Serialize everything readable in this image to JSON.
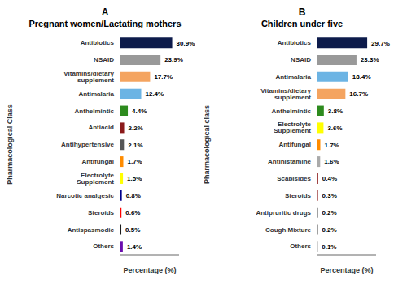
{
  "chart_data": [
    {
      "type": "bar",
      "orientation": "horizontal",
      "title": "A",
      "subtitle": "Pregnant women/Lactating mothers",
      "xlabel": "Percentage (%)",
      "ylabel": "Pharmacological Class",
      "categories": [
        "Antibiotics",
        "NSAID",
        "Vitamins/dietary supplement",
        "Antimalaria",
        "Anthelmintic",
        "Antiacid",
        "Antihypertensive",
        "Antifungal",
        "Electrolyte Supplement",
        "Narcotic analgesic",
        "Steroids",
        "Antispasmodic",
        "Others"
      ],
      "values": [
        30.9,
        23.9,
        17.7,
        12.4,
        4.4,
        2.2,
        2.1,
        1.7,
        1.5,
        0.8,
        0.6,
        0.5,
        1.4
      ],
      "value_labels": [
        "30.9%",
        "23.9%",
        "17.7%",
        "12.4%",
        "4.4%",
        "2.2%",
        "2.1%",
        "1.7%",
        "1.5%",
        "0.8%",
        "0.6%",
        "0.5%",
        "1.4%"
      ],
      "colors": [
        "#0d1b4b",
        "#999999",
        "#f4a460",
        "#6cb4e4",
        "#2d8b1e",
        "#8b1a1a",
        "#555555",
        "#ff8c00",
        "#ffff00",
        "#00008b",
        "#ff0000",
        "#1a1a1a",
        "#6a0dad"
      ],
      "xlim": [
        0,
        35
      ],
      "data_labels": true,
      "tick_labels": "y",
      "grid": false
    },
    {
      "type": "bar",
      "orientation": "horizontal",
      "title": "B",
      "subtitle": "Children under five",
      "xlabel": "Percentage (%)",
      "ylabel": "Pharmacological class",
      "categories": [
        "Antibiotics",
        "NSAID",
        "Antimalaria",
        "Vitamins/dietary supplement",
        "Anthelmintic",
        "Electrolyte Supplement",
        "Antifungal",
        "Antihistamine",
        "Scabisides",
        "Steroids",
        "Antipruritic drugs",
        "Cough Mixture",
        "Others"
      ],
      "values": [
        29.7,
        23.3,
        18.4,
        16.7,
        3.8,
        3.6,
        1.7,
        1.6,
        0.4,
        0.3,
        0.2,
        0.2,
        0.1
      ],
      "value_labels": [
        "29.7%",
        "23.3%",
        "18.4%",
        "16.7%",
        "3.8%",
        "3.6%",
        "1.7%",
        "1.6%",
        "0.4%",
        "0.3%",
        "0.2%",
        "0.2%",
        "0.1%"
      ],
      "colors": [
        "#0d1b4b",
        "#999999",
        "#6cb4e4",
        "#f4a460",
        "#2d8b1e",
        "#ffff00",
        "#ff8c00",
        "#aaaaaa",
        "#8b1a1a",
        "#8b1a1a",
        "#1a1a1a",
        "#1a1a1a",
        "#1a1a1a"
      ],
      "xlim": [
        0,
        35
      ],
      "data_labels": true,
      "tick_labels": "y",
      "grid": false
    }
  ]
}
